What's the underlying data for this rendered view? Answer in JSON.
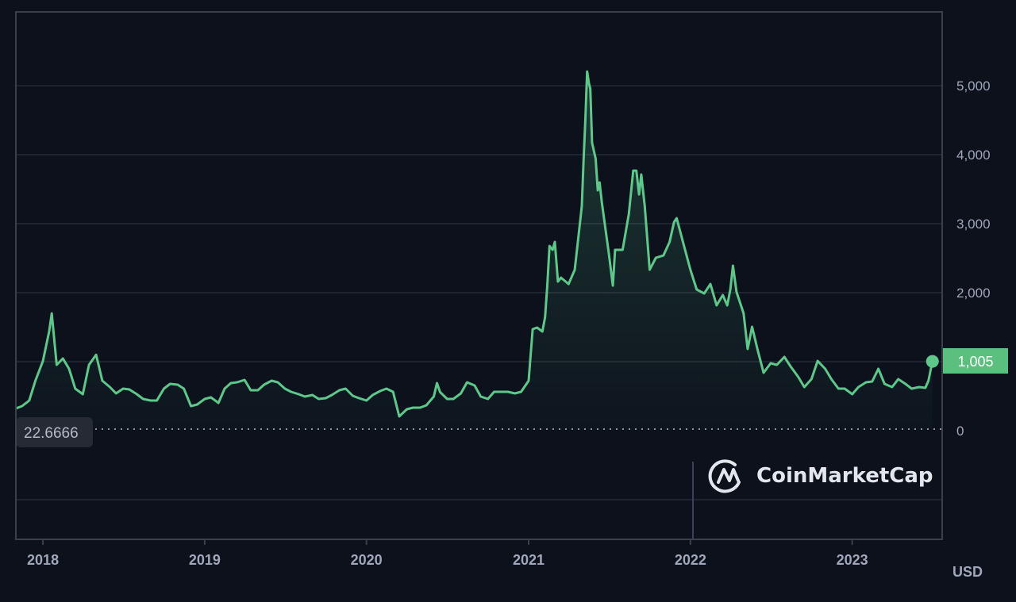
{
  "chart_data": {
    "type": "area",
    "currency_label": "USD",
    "xlim": [
      "2017-11-01",
      "2023-07-23"
    ],
    "ylim": [
      -1575,
      6070
    ],
    "grid": true,
    "x_ticks": [
      "2018",
      "2019",
      "2020",
      "2021",
      "2022",
      "2023"
    ],
    "y_ticks": [
      {
        "value": 5000,
        "label": "5,000"
      },
      {
        "value": 4000,
        "label": "4,000"
      },
      {
        "value": 3000,
        "label": "3,000"
      },
      {
        "value": 2000,
        "label": "2,000"
      },
      {
        "value": 1000,
        "label": ""
      },
      {
        "value": 0,
        "label": "0"
      },
      {
        "value": -1000,
        "label": ""
      }
    ],
    "baseline": {
      "value": 22.6666,
      "label": "22.6666"
    },
    "current": {
      "value": 1005,
      "label": "1,005"
    },
    "line_color": "#5cc98a",
    "label_color": "#5bbf7e",
    "watermark": "CoinMarketCap",
    "series": [
      [
        "2017-11-01",
        322
      ],
      [
        "2017-11-15",
        356
      ],
      [
        "2017-12-01",
        437
      ],
      [
        "2017-12-15",
        724
      ],
      [
        "2018-01-01",
        1011
      ],
      [
        "2018-01-15",
        1437
      ],
      [
        "2018-01-21",
        1700
      ],
      [
        "2018-02-01",
        954
      ],
      [
        "2018-02-15",
        1046
      ],
      [
        "2018-03-01",
        897
      ],
      [
        "2018-03-15",
        609
      ],
      [
        "2018-04-01",
        529
      ],
      [
        "2018-04-15",
        954
      ],
      [
        "2018-05-01",
        1100
      ],
      [
        "2018-05-15",
        724
      ],
      [
        "2018-06-01",
        632
      ],
      [
        "2018-06-15",
        540
      ],
      [
        "2018-07-01",
        609
      ],
      [
        "2018-07-15",
        598
      ],
      [
        "2018-08-01",
        529
      ],
      [
        "2018-08-15",
        460
      ],
      [
        "2018-09-01",
        437
      ],
      [
        "2018-09-15",
        437
      ],
      [
        "2018-10-01",
        609
      ],
      [
        "2018-10-15",
        678
      ],
      [
        "2018-11-01",
        667
      ],
      [
        "2018-11-15",
        609
      ],
      [
        "2018-12-01",
        356
      ],
      [
        "2018-12-15",
        379
      ],
      [
        "2019-01-01",
        460
      ],
      [
        "2019-01-15",
        483
      ],
      [
        "2019-02-01",
        402
      ],
      [
        "2019-02-15",
        609
      ],
      [
        "2019-03-01",
        690
      ],
      [
        "2019-03-15",
        701
      ],
      [
        "2019-04-01",
        736
      ],
      [
        "2019-04-15",
        586
      ],
      [
        "2019-05-01",
        586
      ],
      [
        "2019-05-15",
        667
      ],
      [
        "2019-06-01",
        724
      ],
      [
        "2019-06-15",
        701
      ],
      [
        "2019-07-01",
        609
      ],
      [
        "2019-07-15",
        563
      ],
      [
        "2019-08-01",
        529
      ],
      [
        "2019-08-15",
        494
      ],
      [
        "2019-09-01",
        517
      ],
      [
        "2019-09-15",
        460
      ],
      [
        "2019-10-01",
        471
      ],
      [
        "2019-10-15",
        517
      ],
      [
        "2019-11-01",
        586
      ],
      [
        "2019-11-15",
        609
      ],
      [
        "2019-12-01",
        506
      ],
      [
        "2019-12-15",
        471
      ],
      [
        "2020-01-01",
        437
      ],
      [
        "2020-01-15",
        517
      ],
      [
        "2020-02-01",
        575
      ],
      [
        "2020-02-15",
        609
      ],
      [
        "2020-03-01",
        563
      ],
      [
        "2020-03-15",
        207
      ],
      [
        "2020-04-01",
        310
      ],
      [
        "2020-04-15",
        333
      ],
      [
        "2020-05-01",
        333
      ],
      [
        "2020-05-15",
        368
      ],
      [
        "2020-06-01",
        494
      ],
      [
        "2020-06-08",
        690
      ],
      [
        "2020-06-15",
        560
      ],
      [
        "2020-07-01",
        460
      ],
      [
        "2020-07-15",
        460
      ],
      [
        "2020-08-01",
        540
      ],
      [
        "2020-08-15",
        701
      ],
      [
        "2020-09-01",
        655
      ],
      [
        "2020-09-15",
        494
      ],
      [
        "2020-10-01",
        460
      ],
      [
        "2020-10-15",
        563
      ],
      [
        "2020-11-01",
        563
      ],
      [
        "2020-11-15",
        563
      ],
      [
        "2020-12-01",
        540
      ],
      [
        "2020-12-15",
        563
      ],
      [
        "2021-01-01",
        724
      ],
      [
        "2021-01-10",
        1471
      ],
      [
        "2021-01-20",
        1494
      ],
      [
        "2021-02-01",
        1437
      ],
      [
        "2021-02-07",
        1644
      ],
      [
        "2021-02-12",
        2103
      ],
      [
        "2021-02-17",
        2678
      ],
      [
        "2021-02-24",
        2621
      ],
      [
        "2021-03-01",
        2736
      ],
      [
        "2021-03-08",
        2161
      ],
      [
        "2021-03-15",
        2218
      ],
      [
        "2021-04-01",
        2126
      ],
      [
        "2021-04-15",
        2333
      ],
      [
        "2021-05-01",
        3253
      ],
      [
        "2021-05-05",
        3943
      ],
      [
        "2021-05-09",
        4517
      ],
      [
        "2021-05-13",
        5207
      ],
      [
        "2021-05-17",
        5034
      ],
      [
        "2021-05-20",
        4954
      ],
      [
        "2021-05-24",
        4172
      ],
      [
        "2021-06-01",
        3943
      ],
      [
        "2021-06-06",
        3483
      ],
      [
        "2021-06-10",
        3598
      ],
      [
        "2021-06-15",
        3310
      ],
      [
        "2021-07-01",
        2563
      ],
      [
        "2021-07-10",
        2103
      ],
      [
        "2021-07-15",
        2621
      ],
      [
        "2021-08-01",
        2621
      ],
      [
        "2021-08-15",
        3138
      ],
      [
        "2021-08-25",
        3770
      ],
      [
        "2021-09-01",
        3770
      ],
      [
        "2021-09-07",
        3425
      ],
      [
        "2021-09-12",
        3713
      ],
      [
        "2021-09-20",
        3253
      ],
      [
        "2021-10-01",
        2333
      ],
      [
        "2021-10-15",
        2506
      ],
      [
        "2021-11-01",
        2540
      ],
      [
        "2021-11-15",
        2736
      ],
      [
        "2021-11-25",
        3023
      ],
      [
        "2021-12-01",
        3080
      ],
      [
        "2021-12-15",
        2736
      ],
      [
        "2022-01-01",
        2333
      ],
      [
        "2022-01-15",
        2046
      ],
      [
        "2022-02-01",
        1989
      ],
      [
        "2022-02-15",
        2126
      ],
      [
        "2022-03-01",
        1816
      ],
      [
        "2022-03-15",
        1966
      ],
      [
        "2022-03-25",
        1816
      ],
      [
        "2022-04-01",
        2046
      ],
      [
        "2022-04-07",
        2391
      ],
      [
        "2022-04-15",
        2011
      ],
      [
        "2022-05-01",
        1701
      ],
      [
        "2022-05-10",
        1184
      ],
      [
        "2022-05-20",
        1506
      ],
      [
        "2022-06-01",
        1184
      ],
      [
        "2022-06-15",
        839
      ],
      [
        "2022-07-01",
        977
      ],
      [
        "2022-07-15",
        954
      ],
      [
        "2022-08-01",
        1069
      ],
      [
        "2022-08-15",
        931
      ],
      [
        "2022-09-01",
        782
      ],
      [
        "2022-09-15",
        632
      ],
      [
        "2022-10-01",
        747
      ],
      [
        "2022-10-15",
        1011
      ],
      [
        "2022-11-01",
        897
      ],
      [
        "2022-11-15",
        747
      ],
      [
        "2022-12-01",
        609
      ],
      [
        "2022-12-15",
        609
      ],
      [
        "2023-01-01",
        529
      ],
      [
        "2023-01-15",
        632
      ],
      [
        "2023-02-01",
        701
      ],
      [
        "2023-02-15",
        713
      ],
      [
        "2023-03-01",
        897
      ],
      [
        "2023-03-15",
        678
      ],
      [
        "2023-04-01",
        632
      ],
      [
        "2023-04-15",
        747
      ],
      [
        "2023-05-01",
        678
      ],
      [
        "2023-05-15",
        609
      ],
      [
        "2023-06-01",
        632
      ],
      [
        "2023-06-15",
        621
      ],
      [
        "2023-06-22",
        724
      ],
      [
        "2023-07-01",
        1005
      ]
    ]
  }
}
